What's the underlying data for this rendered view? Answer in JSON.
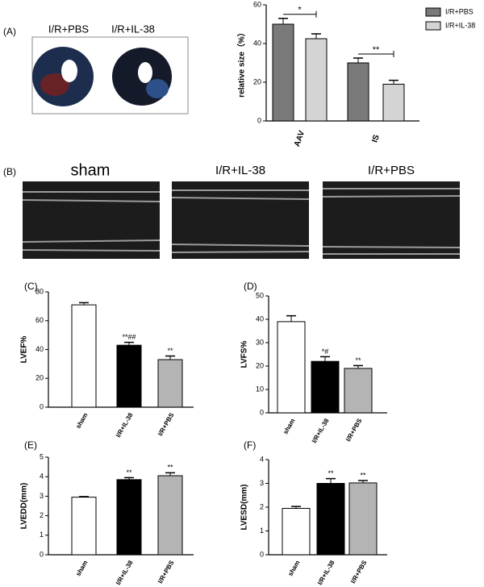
{
  "panel_labels": [
    "(A)",
    "(B)",
    "(C)",
    "(D)",
    "(E)",
    "(F)"
  ],
  "heart_labels": [
    "I/R+PBS",
    "I/R+IL-38"
  ],
  "echo_labels": [
    "sham",
    "I/R+IL-38",
    "I/R+PBS"
  ],
  "chart_data": [
    {
      "type": "grouped_bar",
      "y_label": "relative size（%）",
      "categories": [
        "AAV",
        "IS"
      ],
      "series": [
        {
          "name": "I/R+PBS",
          "color": "#7a7a7a",
          "values": [
            50,
            30
          ],
          "errors": [
            3,
            2.5
          ]
        },
        {
          "name": "I/R+IL-38",
          "color": "#d4d4d4",
          "values": [
            42.5,
            19
          ],
          "errors": [
            2.5,
            2
          ]
        }
      ],
      "ylim": [
        0,
        60
      ],
      "yticks": [
        0,
        20,
        40,
        60
      ],
      "annotations": [
        "*",
        "**"
      ],
      "legend": "upper right"
    },
    {
      "type": "bar",
      "y_label": "LVEF%",
      "categories": [
        "sham",
        "I/R+IL-38",
        "I/R+PBS"
      ],
      "values": [
        71,
        43,
        33
      ],
      "errors": [
        1.5,
        2,
        2.5
      ],
      "colors": [
        "#ffffff",
        "#000000",
        "#b4b4b4"
      ],
      "ylim": [
        0,
        80
      ],
      "yticks": [
        0,
        20,
        40,
        60,
        80
      ],
      "annotations": [
        null,
        "**##",
        "**"
      ]
    },
    {
      "type": "bar",
      "y_label": "LVFS%",
      "categories": [
        "sham",
        "I/R+IL-38",
        "I/R+PBS"
      ],
      "values": [
        39,
        22,
        19
      ],
      "errors": [
        2.5,
        2,
        1.2
      ],
      "colors": [
        "#ffffff",
        "#000000",
        "#b4b4b4"
      ],
      "ylim": [
        0,
        50
      ],
      "yticks": [
        0,
        10,
        20,
        30,
        40,
        50
      ],
      "annotations": [
        null,
        "*#",
        "**"
      ]
    },
    {
      "type": "bar",
      "y_label": "LVEDD(mm)",
      "categories": [
        "sham",
        "I/R+IL-38",
        "I/R+PBS"
      ],
      "values": [
        2.95,
        3.85,
        4.05
      ],
      "errors": [
        0.03,
        0.1,
        0.15
      ],
      "colors": [
        "#ffffff",
        "#000000",
        "#b4b4b4"
      ],
      "ylim": [
        0,
        5
      ],
      "yticks": [
        0,
        1,
        2,
        3,
        4,
        5
      ],
      "annotations": [
        null,
        "**",
        "**"
      ]
    },
    {
      "type": "bar",
      "y_label": "LVESD(mm)",
      "categories": [
        "sham",
        "I/R+IL-38",
        "I/R+PBS"
      ],
      "values": [
        1.95,
        3.0,
        3.02
      ],
      "errors": [
        0.08,
        0.2,
        0.1
      ],
      "colors": [
        "#ffffff",
        "#000000",
        "#b4b4b4"
      ],
      "ylim": [
        0,
        4
      ],
      "yticks": [
        0,
        1,
        2,
        3,
        4
      ],
      "annotations": [
        null,
        "**",
        "**"
      ]
    }
  ]
}
